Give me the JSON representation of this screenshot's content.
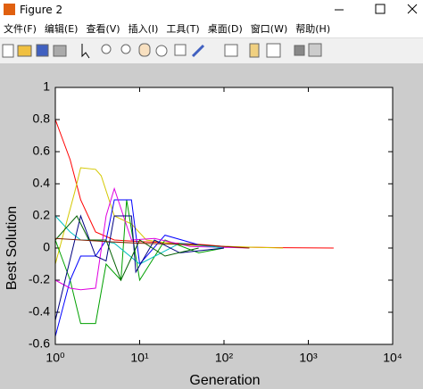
{
  "window": {
    "title": "Figure 2"
  },
  "menu": [
    "文件(F)",
    "编辑(E)",
    "查看(V)",
    "插入(I)",
    "工具(T)",
    "桌面(D)",
    "窗口(W)",
    "帮助(H)"
  ],
  "chart_data": {
    "type": "line",
    "xlabel": "Generation",
    "ylabel": "Best Solution",
    "xscale": "log",
    "xlim": [
      1,
      10000
    ],
    "xticks": [
      {
        "value": 1,
        "label": "10⁰"
      },
      {
        "value": 10,
        "label": "10¹"
      },
      {
        "value": 100,
        "label": "10²"
      },
      {
        "value": 1000,
        "label": "10³"
      },
      {
        "value": 10000,
        "label": "10⁴"
      }
    ],
    "ylim": [
      -0.6,
      1
    ],
    "yticks": [
      -0.6,
      -0.4,
      -0.2,
      0,
      0.2,
      0.4,
      0.6,
      0.8,
      1
    ],
    "series": [
      {
        "color": "#ff0000",
        "x": [
          1,
          1.5,
          2,
          3,
          5,
          10,
          30,
          60,
          100,
          200,
          500,
          2000
        ],
        "values": [
          0.8,
          0.55,
          0.3,
          0.1,
          0.05,
          0.04,
          0.03,
          0.02,
          0.01,
          0.005,
          0.002,
          0
        ]
      },
      {
        "color": "#d4c800",
        "x": [
          1,
          1.7,
          2,
          3,
          3.5,
          5,
          8,
          12,
          30,
          100,
          500
        ],
        "values": [
          -0.1,
          0.35,
          0.5,
          0.49,
          0.45,
          0.2,
          0.15,
          0.05,
          0.02,
          0.01,
          0
        ]
      },
      {
        "color": "#00a000",
        "x": [
          1,
          1.5,
          2,
          3,
          4,
          6,
          7,
          10,
          20,
          50,
          100
        ],
        "values": [
          0.05,
          -0.2,
          -0.47,
          -0.47,
          -0.1,
          -0.2,
          0.3,
          -0.2,
          0.05,
          -0.03,
          0
        ]
      },
      {
        "color": "#0000ff",
        "x": [
          1,
          1.5,
          2,
          3,
          4,
          5,
          8,
          10,
          20,
          50,
          100
        ],
        "values": [
          -0.55,
          -0.2,
          -0.05,
          -0.05,
          0.05,
          0.3,
          0.3,
          -0.1,
          0.08,
          0.02,
          0
        ]
      },
      {
        "color": "#e000e0",
        "x": [
          1,
          1.5,
          2,
          3,
          4,
          5,
          8,
          15,
          40,
          200
        ],
        "values": [
          -0.2,
          -0.25,
          -0.26,
          -0.25,
          0.2,
          0.37,
          0.05,
          0.06,
          0.01,
          0
        ]
      },
      {
        "color": "#00c0c0",
        "x": [
          1,
          1.5,
          2,
          3,
          5,
          10,
          30,
          100
        ],
        "values": [
          0.2,
          0.1,
          0.05,
          0.05,
          0.03,
          -0.1,
          0.03,
          0
        ]
      },
      {
        "color": "#000080",
        "x": [
          1,
          2,
          3,
          4,
          5,
          8,
          9,
          15,
          30,
          100
        ],
        "values": [
          -0.45,
          0.2,
          -0.05,
          -0.08,
          0.2,
          0.2,
          -0.15,
          0.05,
          -0.03,
          0
        ]
      },
      {
        "color": "#006000",
        "x": [
          1,
          1.8,
          2.5,
          4,
          6,
          10,
          20,
          50
        ],
        "values": [
          0.05,
          0.2,
          0.05,
          0.05,
          -0.2,
          0.05,
          -0.05,
          0
        ]
      },
      {
        "color": "#802000",
        "x": [
          1,
          2,
          4,
          10,
          50,
          200
        ],
        "values": [
          0.06,
          0.05,
          0.04,
          0.03,
          0.02,
          0
        ]
      }
    ]
  }
}
